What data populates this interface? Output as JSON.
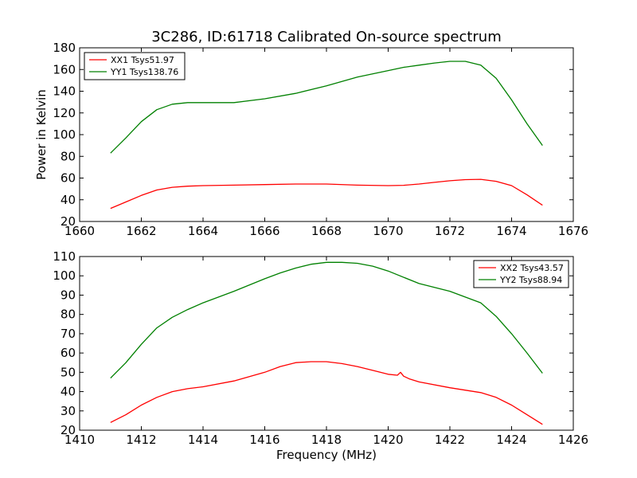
{
  "chart_data": [
    {
      "type": "line",
      "title": "3C286, ID:61718 Calibrated On-source spectrum",
      "xlabel": "",
      "ylabel": "Power in Kelvin",
      "xlim": [
        1660,
        1676
      ],
      "ylim": [
        20,
        180
      ],
      "xticks": [
        1660,
        1662,
        1664,
        1666,
        1668,
        1670,
        1672,
        1674,
        1676
      ],
      "yticks": [
        20,
        40,
        60,
        80,
        100,
        120,
        140,
        160,
        180
      ],
      "grid": false,
      "legend_position": "top-left",
      "series": [
        {
          "name": "XX1 Tsys51.97",
          "color": "#ff0000",
          "x": [
            1661.0,
            1661.5,
            1662.0,
            1662.5,
            1663.0,
            1663.5,
            1664.0,
            1665.0,
            1666.0,
            1667.0,
            1668.0,
            1669.0,
            1670.0,
            1670.5,
            1671.0,
            1671.5,
            1672.0,
            1672.5,
            1673.0,
            1673.5,
            1674.0,
            1674.5,
            1675.0
          ],
          "y": [
            32,
            38,
            44,
            49,
            51.5,
            52.5,
            53,
            53.5,
            54,
            54.5,
            54.5,
            53.5,
            53,
            53.3,
            54.5,
            56,
            57.5,
            58.5,
            58.8,
            57,
            53,
            44.5,
            35
          ]
        },
        {
          "name": "YY1 Tsys138.76",
          "color": "#008000",
          "x": [
            1661.0,
            1661.5,
            1662.0,
            1662.5,
            1663.0,
            1663.5,
            1664.0,
            1665.0,
            1666.0,
            1667.0,
            1668.0,
            1668.5,
            1669.0,
            1670.0,
            1670.5,
            1671.0,
            1671.5,
            1672.0,
            1672.5,
            1673.0,
            1673.5,
            1674.0,
            1674.5,
            1675.0
          ],
          "y": [
            83,
            97,
            112,
            123,
            128,
            129.5,
            129.5,
            129.5,
            133,
            138,
            145,
            149,
            153,
            159,
            162,
            164,
            166,
            167.5,
            167.5,
            164,
            152,
            132,
            110,
            90
          ]
        }
      ]
    },
    {
      "type": "line",
      "title": "",
      "xlabel": "Frequency (MHz)",
      "ylabel": "",
      "xlim": [
        1410,
        1426
      ],
      "ylim": [
        20,
        110
      ],
      "xticks": [
        1410,
        1412,
        1414,
        1416,
        1418,
        1420,
        1422,
        1424,
        1426
      ],
      "yticks": [
        20,
        30,
        40,
        50,
        60,
        70,
        80,
        90,
        100,
        110
      ],
      "grid": false,
      "legend_position": "top-right",
      "series": [
        {
          "name": "XX2 Tsys43.57",
          "color": "#ff0000",
          "x": [
            1411.0,
            1411.5,
            1412.0,
            1412.5,
            1413.0,
            1413.5,
            1414.0,
            1415.0,
            1416.0,
            1416.5,
            1417.0,
            1417.5,
            1418.0,
            1418.5,
            1419.0,
            1419.5,
            1420.0,
            1420.3,
            1420.4,
            1420.5,
            1420.7,
            1421.0,
            1422.0,
            1423.0,
            1423.5,
            1424.0,
            1424.5,
            1425.0
          ],
          "y": [
            24,
            28,
            33,
            37,
            40,
            41.5,
            42.5,
            45.5,
            50,
            53,
            55,
            55.5,
            55.5,
            54.5,
            53,
            51,
            49,
            48.5,
            50,
            48,
            46.5,
            45,
            42,
            39.5,
            37,
            33,
            28,
            23
          ]
        },
        {
          "name": "YY2 Tsys88.94",
          "color": "#008000",
          "x": [
            1411.0,
            1411.5,
            1412.0,
            1412.5,
            1413.0,
            1413.5,
            1414.0,
            1415.0,
            1416.0,
            1416.5,
            1417.0,
            1417.5,
            1418.0,
            1418.5,
            1419.0,
            1419.5,
            1420.0,
            1421.0,
            1422.0,
            1423.0,
            1423.5,
            1424.0,
            1424.5,
            1425.0
          ],
          "y": [
            47,
            55,
            64.5,
            73,
            78.5,
            82.5,
            86,
            92,
            98.5,
            101.5,
            104,
            106,
            107,
            107,
            106.5,
            105,
            102.5,
            96,
            92,
            86,
            79,
            70,
            60,
            49.5
          ]
        }
      ]
    }
  ]
}
